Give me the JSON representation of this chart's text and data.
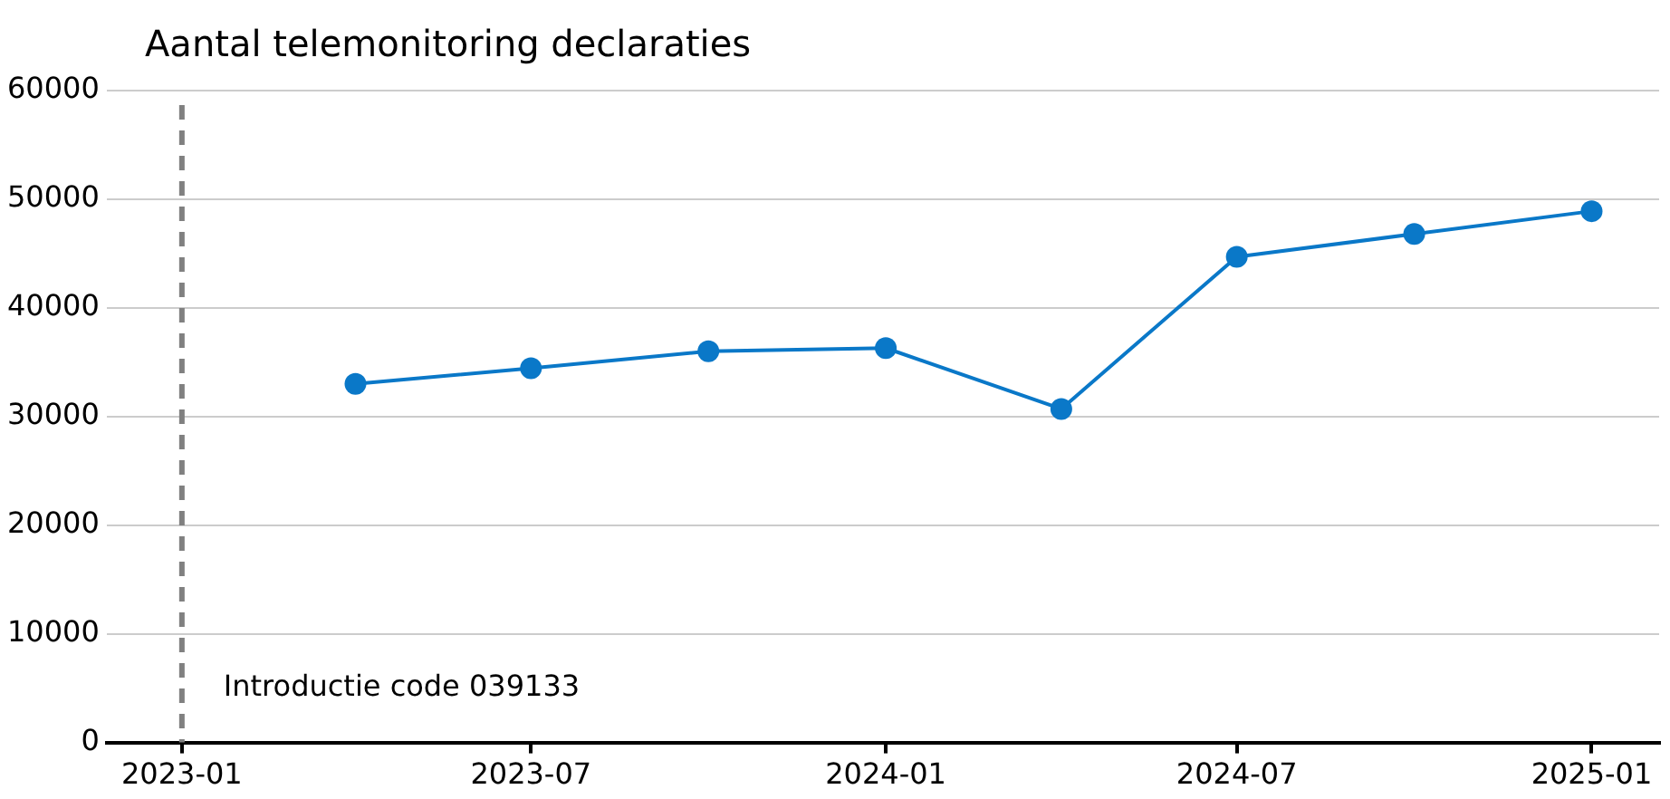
{
  "chart_data": {
    "type": "line",
    "title": "Aantal telemonitoring declaraties",
    "x": [
      "2023-04",
      "2023-07",
      "2023-10",
      "2024-01",
      "2024-04",
      "2024-07",
      "2024-10",
      "2025-01"
    ],
    "series": [
      {
        "color": "#0a78c8",
        "values": [
          33000,
          34450,
          36000,
          36300,
          30700,
          44700,
          46800,
          48900
        ]
      }
    ],
    "xlim": [
      "2022-11-23",
      "2025-02-05"
    ],
    "xticks": [
      "2023-01",
      "2023-07",
      "2024-01",
      "2024-07",
      "2025-01"
    ],
    "ylim": [
      0,
      60000
    ],
    "yticks": [
      0,
      10000,
      20000,
      30000,
      40000,
      50000,
      60000
    ],
    "ref_lines": [
      {
        "axis": "x",
        "value": "2023-01",
        "label": "Introductie code 039133",
        "color": "#808080",
        "line_style": "dashed"
      }
    ],
    "grid": "y",
    "legend": false,
    "marker": "circle",
    "line_style": "solid"
  }
}
